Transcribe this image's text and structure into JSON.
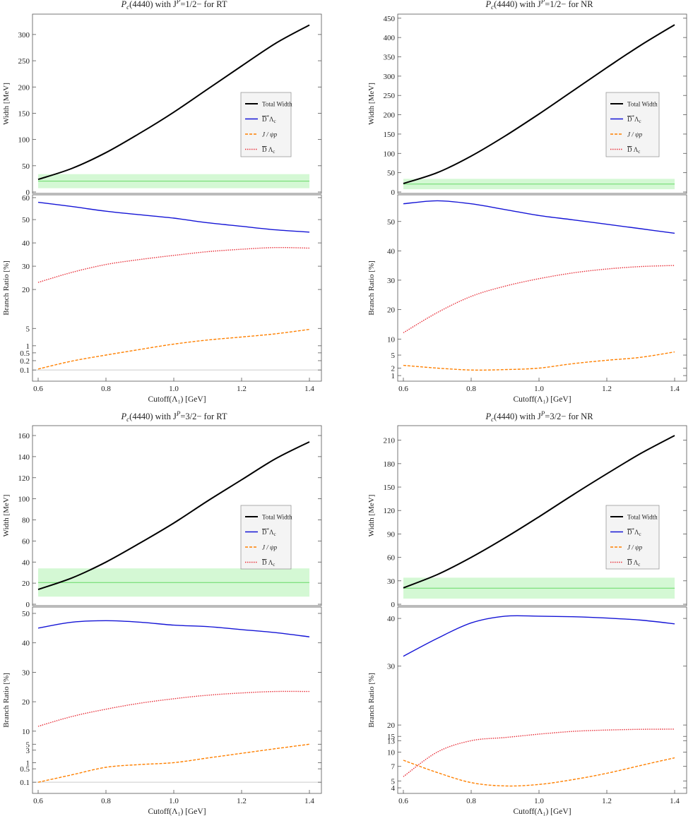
{
  "chart_data": [
    {
      "type": "line",
      "title_pre": "P",
      "title_sub": "c",
      "title_mid": "(4440) with J",
      "title_sup": "P",
      "title_post": "=1/2− for RT",
      "top": {
        "ylabel": "Width [MeV]",
        "ylim": [
          0,
          320
        ],
        "yticks": [
          "0",
          "50",
          "100",
          "150",
          "200",
          "250",
          "300"
        ],
        "ytick_vals": [
          0,
          50,
          100,
          150,
          200,
          250,
          300
        ],
        "band": {
          "center": 20.6,
          "low": 7.2,
          "high": 34.0
        },
        "total_width": {
          "x": [
            0.6,
            0.7,
            0.8,
            0.9,
            1.0,
            1.1,
            1.2,
            1.3,
            1.4
          ],
          "y": [
            24,
            45,
            75,
            112,
            152,
            196,
            240,
            283,
            318
          ]
        }
      },
      "bottom": {
        "ylabel": "Branch Ratio [%]",
        "xlabel": "Cutoff(Λ₁) [GeV]",
        "xticks": [
          "0.6",
          "0.8",
          "1.0",
          "1.2",
          "1.4"
        ],
        "yticks": [
          "0.1",
          "0.2",
          "0.5",
          "1",
          "5",
          "20",
          "30",
          "40",
          "50",
          "60"
        ],
        "tick_pos": [
          0.06,
          0.11,
          0.152,
          0.19,
          0.283,
          0.492,
          0.617,
          0.742,
          0.867,
          0.985
        ],
        "hline": 0.1,
        "series": [
          {
            "name_key": "dstar",
            "x": [
              0.6,
              0.7,
              0.8,
              0.9,
              1.0,
              1.1,
              1.2,
              1.3,
              1.4
            ],
            "y": [
              58,
              56,
              54,
              52.5,
              51,
              49,
              47.5,
              46,
              45
            ],
            "pos": [
              0.96,
              0.937,
              0.912,
              0.893,
              0.875,
              0.85,
              0.831,
              0.812,
              0.8
            ]
          },
          {
            "name_key": "jpsi",
            "x": [
              0.6,
              0.7,
              0.8,
              0.9,
              1.0,
              1.1,
              1.2,
              1.3,
              1.4
            ],
            "y": [
              0.11,
              0.2,
              0.35,
              0.55,
              0.9,
              1.5,
              2.3,
              3.2,
              4.5
            ],
            "pos": [
              0.065,
              0.108,
              0.14,
              0.17,
              0.199,
              0.221,
              0.237,
              0.254,
              0.278
            ]
          },
          {
            "name_key": "dbar",
            "x": [
              0.6,
              0.7,
              0.8,
              0.9,
              1.0,
              1.1,
              1.2,
              1.3,
              1.4
            ],
            "y": [
              23,
              27.5,
              31,
              33.2,
              35,
              36.5,
              37.5,
              38.2,
              38
            ],
            "pos": [
              0.53,
              0.584,
              0.626,
              0.653,
              0.675,
              0.695,
              0.708,
              0.717,
              0.714
            ]
          }
        ]
      }
    },
    {
      "type": "line",
      "title_pre": "P",
      "title_sub": "c",
      "title_mid": "(4440) with J",
      "title_sup": "P",
      "title_post": "=1/2− for NR",
      "top": {
        "ylabel": "Width [MeV]",
        "ylim": [
          0,
          435
        ],
        "yticks": [
          "0",
          "50",
          "100",
          "150",
          "200",
          "250",
          "300",
          "350",
          "400",
          "450"
        ],
        "ytick_vals": [
          0,
          50,
          100,
          150,
          200,
          250,
          300,
          350,
          400,
          450
        ],
        "band": {
          "center": 20.6,
          "low": 7.2,
          "high": 34.0
        },
        "total_width": {
          "x": [
            0.6,
            0.7,
            0.8,
            0.9,
            1.0,
            1.1,
            1.2,
            1.3,
            1.4
          ],
          "y": [
            22,
            50,
            93,
            145,
            202,
            262,
            322,
            380,
            433
          ]
        }
      },
      "bottom": {
        "ylabel": "Branch Ratio [%]",
        "xlabel": "Cutoff(Λ₁) [GeV]",
        "xticks": [
          "0.6",
          "0.8",
          "1.0",
          "1.2",
          "1.4"
        ],
        "yticks": [
          "1",
          "2",
          "5",
          "10",
          "20",
          "30",
          "40",
          "50"
        ],
        "tick_pos": [
          0.03,
          0.07,
          0.14,
          0.226,
          0.384,
          0.542,
          0.699,
          0.857
        ],
        "series": [
          {
            "name_key": "dstar",
            "x": [
              0.6,
              0.7,
              0.8,
              0.9,
              1.0,
              1.1,
              1.2,
              1.3,
              1.4
            ],
            "y": [
              56,
              57,
              56,
              54,
              52,
              50.5,
              49,
              47.5,
              46
            ],
            "pos": [
              0.952,
              0.968,
              0.952,
              0.921,
              0.889,
              0.866,
              0.842,
              0.818,
              0.794
            ]
          },
          {
            "name_key": "jpsi",
            "x": [
              0.6,
              0.7,
              0.8,
              0.9,
              1.0,
              1.1,
              1.2,
              1.3,
              1.4
            ],
            "y": [
              2.5,
              2,
              1.5,
              1.6,
              2,
              2.7,
              3.5,
              4.5,
              5.6
            ],
            "pos": [
              0.085,
              0.07,
              0.06,
              0.062,
              0.07,
              0.094,
              0.112,
              0.128,
              0.157
            ]
          },
          {
            "name_key": "dbar",
            "x": [
              0.6,
              0.7,
              0.8,
              0.9,
              1.0,
              1.1,
              1.2,
              1.3,
              1.4
            ],
            "y": [
              12,
              19,
              24.5,
              28,
              30.5,
              32.5,
              33.8,
              34.6,
              35
            ],
            "pos": [
              0.26,
              0.368,
              0.455,
              0.51,
              0.55,
              0.581,
              0.602,
              0.615,
              0.621
            ]
          }
        ]
      }
    },
    {
      "type": "line",
      "title_pre": "P",
      "title_sub": "c",
      "title_mid": "(4440) with J",
      "title_sup": "P",
      "title_post": "=3/2− for RT",
      "top": {
        "ylabel": "Width [MeV]",
        "ylim": [
          0,
          160
        ],
        "yticks": [
          "0",
          "20",
          "40",
          "60",
          "80",
          "100",
          "120",
          "140",
          "160"
        ],
        "ytick_vals": [
          0,
          20,
          40,
          60,
          80,
          100,
          120,
          140,
          160
        ],
        "band": {
          "center": 20.6,
          "low": 7.2,
          "high": 34.0
        },
        "total_width": {
          "x": [
            0.6,
            0.7,
            0.8,
            0.9,
            1.0,
            1.1,
            1.2,
            1.3,
            1.4
          ],
          "y": [
            14,
            25,
            40,
            58,
            77,
            98,
            118,
            138,
            154
          ]
        }
      },
      "bottom": {
        "ylabel": "Branch Ratio [%]",
        "xlabel": "Cutoff(Λ₁) [GeV]",
        "xticks": [
          "0.6",
          "0.8",
          "1.0",
          "1.2",
          "1.4"
        ],
        "yticks": [
          "0.1",
          "0.5",
          "1",
          "3",
          "5",
          "10",
          "20",
          "30",
          "40",
          "50"
        ],
        "tick_pos": [
          0.06,
          0.132,
          0.165,
          0.232,
          0.264,
          0.334,
          0.492,
          0.65,
          0.808,
          0.966
        ],
        "hline": 0.1,
        "series": [
          {
            "name_key": "dstar",
            "x": [
              0.6,
              0.7,
              0.8,
              0.9,
              1.0,
              1.1,
              1.2,
              1.3,
              1.4
            ],
            "y": [
              45,
              47,
              47.5,
              47,
              46,
              45.5,
              44.5,
              43.5,
              42
            ],
            "pos": [
              0.887,
              0.919,
              0.927,
              0.919,
              0.903,
              0.895,
              0.879,
              0.863,
              0.84
            ]
          },
          {
            "name_key": "jpsi",
            "x": [
              0.6,
              0.7,
              0.8,
              0.9,
              1.0,
              1.1,
              1.2,
              1.3,
              1.4
            ],
            "y": [
              0.1,
              0.2,
              0.4,
              0.6,
              1,
              1.5,
              2.5,
              3.5,
              5
            ],
            "pos": [
              0.06,
              0.1,
              0.14,
              0.155,
              0.165,
              0.19,
              0.215,
              0.24,
              0.264
            ]
          },
          {
            "name_key": "dbar",
            "x": [
              0.6,
              0.7,
              0.8,
              0.9,
              1.0,
              1.1,
              1.2,
              1.3,
              1.4
            ],
            "y": [
              12,
              15,
              17.5,
              19.5,
              21,
              22.2,
              23,
              23.5,
              23.5
            ],
            "pos": [
              0.36,
              0.413,
              0.452,
              0.484,
              0.508,
              0.527,
              0.539,
              0.547,
              0.547
            ]
          }
        ]
      }
    },
    {
      "type": "line",
      "title_pre": "P",
      "title_sub": "c",
      "title_mid": "(4440) with J",
      "title_sup": "P",
      "title_post": "=3/2− for NR",
      "top": {
        "ylabel": "Width [MeV]",
        "ylim": [
          0,
          216
        ],
        "yticks": [
          "0",
          "30",
          "60",
          "90",
          "120",
          "150",
          "180",
          "210"
        ],
        "ytick_vals": [
          0,
          30,
          60,
          90,
          120,
          150,
          180,
          210
        ],
        "band": {
          "center": 20.6,
          "low": 7.2,
          "high": 34.0
        },
        "total_width": {
          "x": [
            0.6,
            0.7,
            0.8,
            0.9,
            1.0,
            1.1,
            1.2,
            1.3,
            1.4
          ],
          "y": [
            21,
            38,
            60,
            85,
            112,
            140,
            167,
            193,
            216
          ]
        }
      },
      "bottom": {
        "ylabel": "Branch Ratio [%]",
        "xlabel": "Cutoff(Λ₁) [GeV]",
        "xticks": [
          "0.6",
          "0.8",
          "1.0",
          "1.2",
          "1.4"
        ],
        "yticks": [
          "4",
          "5",
          "7",
          "10",
          "13",
          "15",
          "20",
          "30",
          "40"
        ],
        "tick_pos": [
          0.03,
          0.067,
          0.145,
          0.222,
          0.283,
          0.306,
          0.367,
          0.683,
          0.939
        ],
        "series": [
          {
            "name_key": "dstar",
            "x": [
              0.6,
              0.7,
              0.8,
              0.9,
              1.0,
              1.1,
              1.2,
              1.3,
              1.4
            ],
            "y": [
              32.5,
              37.5,
              40,
              41,
              41,
              40.8,
              40.5,
              40,
              39
            ],
            "pos": [
              0.736,
              0.832,
              0.915,
              0.951,
              0.951,
              0.948,
              0.941,
              0.93,
              0.91
            ]
          },
          {
            "name_key": "jpsi",
            "x": [
              0.6,
              0.7,
              0.8,
              0.9,
              1.0,
              1.1,
              1.2,
              1.3,
              1.4
            ],
            "y": [
              8.5,
              6.5,
              5,
              4.5,
              4.7,
              5.4,
              6.4,
              7.8,
              9.2
            ],
            "pos": [
              0.178,
              0.112,
              0.058,
              0.04,
              0.048,
              0.074,
              0.108,
              0.15,
              0.191
            ]
          },
          {
            "name_key": "dbar",
            "x": [
              0.6,
              0.7,
              0.8,
              0.9,
              1.0,
              1.1,
              1.2,
              1.3,
              1.4
            ],
            "y": [
              5.5,
              10,
              13,
              14.5,
              15.5,
              16.5,
              17.2,
              17.5,
              17.6
            ],
            "pos": [
              0.09,
              0.222,
              0.283,
              0.3,
              0.318,
              0.333,
              0.34,
              0.344,
              0.345
            ]
          }
        ]
      }
    }
  ],
  "legend": {
    "total": "Total Width",
    "dstar_bar": "D",
    "dstar_sup": "*",
    "dstar_rest": "Λ",
    "jpsi": "J / ψp",
    "dbar_bar": "D",
    "dbar_rest": " Λ",
    "sub_c": "c"
  },
  "colors": {
    "total": "#000000",
    "dstar": "#1515d6",
    "jpsi": "#ff8000",
    "dbar": "#e8303a",
    "band_fill": "#d4f8d4",
    "band_line": "#66d966",
    "hline": "#cccccc"
  }
}
